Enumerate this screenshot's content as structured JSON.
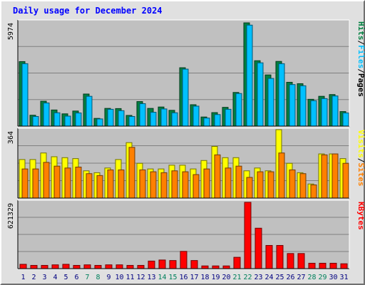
{
  "chart_data": {
    "title": "Daily usage for December 2024",
    "type": "bar",
    "days": [
      "1",
      "2",
      "3",
      "4",
      "5",
      "6",
      "7",
      "8",
      "9",
      "10",
      "11",
      "12",
      "13",
      "14",
      "15",
      "16",
      "17",
      "18",
      "19",
      "20",
      "21",
      "22",
      "23",
      "24",
      "25",
      "26",
      "27",
      "28",
      "29",
      "30",
      "31"
    ],
    "weekend_days": [
      "7",
      "8",
      "14",
      "15",
      "21",
      "22",
      "28",
      "29"
    ],
    "panels": [
      {
        "name": "hits-files-pages",
        "ymax": 5974,
        "ymax_label": "5974",
        "legend": [
          "Pages",
          "/",
          "Files",
          "/",
          "Hits"
        ],
        "series": [
          {
            "name": "Hits",
            "color": "#008040",
            "values": [
              3680,
              620,
              1420,
              920,
              700,
              860,
              1830,
              440,
              1010,
              1000,
              610,
              1400,
              1010,
              1090,
              900,
              3330,
              1220,
              520,
              770,
              1070,
              1920,
              5890,
              3730,
              2920,
              3690,
              2500,
              2420,
              1530,
              1700,
              1800,
              830
            ]
          },
          {
            "name": "Files",
            "color": "#00c0ff",
            "values": [
              3560,
              550,
              1320,
              760,
              570,
              750,
              1700,
              410,
              960,
              880,
              550,
              1280,
              790,
              980,
              760,
              3250,
              1140,
              460,
              660,
              960,
              1860,
              5760,
              3610,
              2720,
              3560,
              2370,
              2300,
              1450,
              1570,
              1720,
              750
            ]
          }
        ]
      },
      {
        "name": "visits-sites",
        "ymax": 364,
        "ymax_label": "364",
        "legend": [
          "Sites",
          "/",
          "Visits"
        ],
        "series": [
          {
            "name": "Visits",
            "color": "#ffff00",
            "values": [
              205,
              205,
              240,
              220,
              215,
              210,
              145,
              135,
              160,
              205,
              295,
              185,
              155,
              155,
              175,
              175,
              155,
              200,
              275,
              215,
              215,
              145,
              160,
              145,
              364,
              185,
              135,
              75,
              235,
              235,
              210
            ]
          },
          {
            "name": "Sites",
            "color": "#ff8000",
            "values": [
              155,
              155,
              190,
              170,
              160,
              165,
              130,
              120,
              150,
              150,
              270,
              150,
              140,
              135,
              145,
              140,
              125,
              155,
              230,
              160,
              170,
              110,
              140,
              140,
              240,
              150,
              130,
              70,
              230,
              235,
              185
            ]
          }
        ]
      },
      {
        "name": "kbytes",
        "ymax": 621329,
        "ymax_label": "621329",
        "legend": [
          "KBytes"
        ],
        "series": [
          {
            "name": "KBytes",
            "color": "#ff0000",
            "values": [
              40000,
              30000,
              30000,
              35000,
              40000,
              30000,
              35000,
              30000,
              35000,
              35000,
              30000,
              30000,
              70000,
              80000,
              75000,
              160000,
              75000,
              25000,
              25000,
              25000,
              105000,
              615000,
              375000,
              215000,
              215000,
              140000,
              140000,
              50000,
              50000,
              50000,
              45000
            ]
          }
        ]
      }
    ]
  }
}
